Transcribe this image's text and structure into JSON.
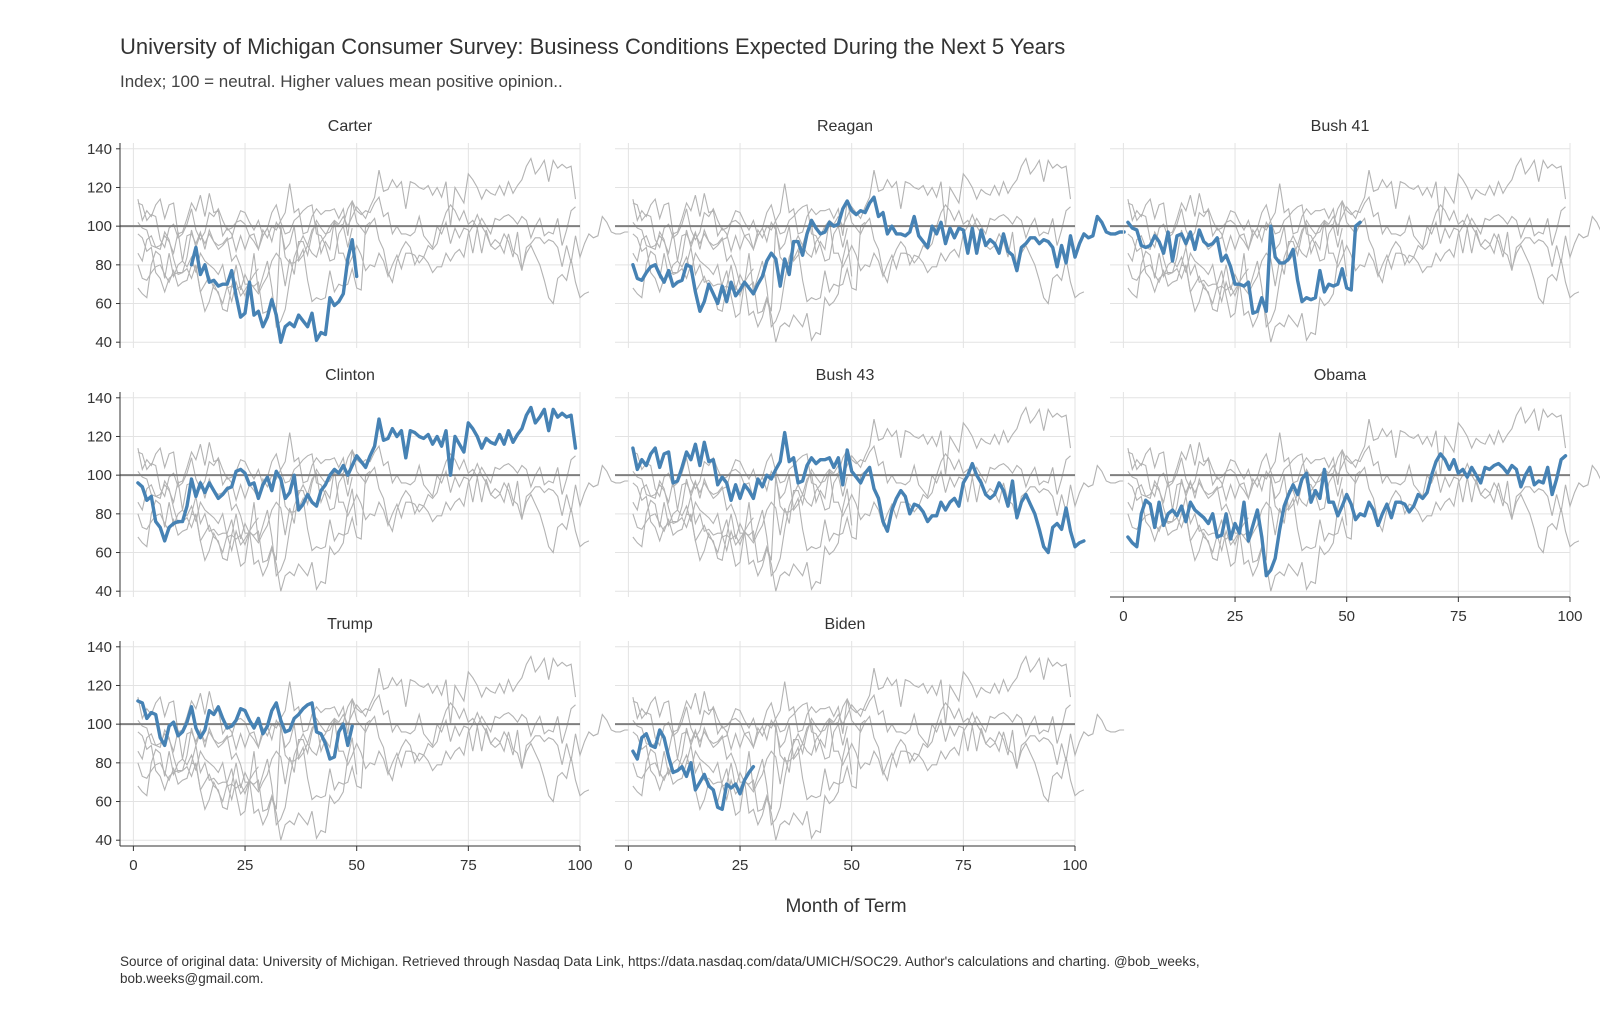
{
  "chart_data": {
    "type": "line",
    "title": "University of Michigan Consumer Survey: Business Conditions Expected During the Next 5 Years",
    "subtitle": "Index; 100 = neutral. Higher values mean positive opinion..",
    "xlabel": "Month of Term",
    "ylabel": "",
    "caption_lines": [
      "Source of original data: University of Michigan. Retrieved through Nasdaq Data Link, https://data.nasdaq.com/data/UMICH/SOC29. Author's calculations and charting. @bob_weeks,",
      "bob.weeks@gmail.com."
    ],
    "xlim": [
      -3,
      100
    ],
    "ylim": [
      37,
      143
    ],
    "xticks": [
      0,
      25,
      50,
      75,
      100
    ],
    "yticks": [
      40,
      60,
      80,
      100,
      120,
      140
    ],
    "reference_line": 100,
    "grid": true,
    "highlight_color": "#4682b4",
    "background_color": "#b3b3b3",
    "reference_color": "#7f7f7f",
    "panels": [
      {
        "name": "Carter",
        "x_start": 13,
        "values": [
          80,
          89,
          75,
          80,
          71,
          72,
          69,
          70,
          70,
          77,
          64,
          53,
          55,
          71,
          54,
          56,
          48,
          53,
          62,
          54,
          40,
          48,
          50,
          48,
          54,
          51,
          48,
          55,
          41,
          45,
          44,
          63,
          59,
          61,
          65,
          83,
          93,
          74
        ]
      },
      {
        "name": "Reagan",
        "x_start": 1,
        "values": [
          80,
          73,
          72,
          76,
          79,
          80,
          75,
          71,
          77,
          69,
          71,
          72,
          80,
          79,
          66,
          56,
          61,
          70,
          65,
          60,
          69,
          61,
          71,
          64,
          67,
          71,
          68,
          65,
          70,
          74,
          82,
          86,
          83,
          69,
          83,
          75,
          92,
          92,
          85,
          96,
          103,
          99,
          96,
          97,
          102,
          100,
          101,
          109,
          113,
          108,
          106,
          108,
          107,
          112,
          115,
          105,
          107,
          96,
          100,
          96,
          96,
          95,
          97,
          105,
          95,
          92,
          89,
          100,
          96,
          102,
          91,
          99,
          94,
          99,
          98,
          86,
          99,
          86,
          98,
          90,
          93,
          91,
          86,
          96,
          87,
          85,
          77,
          89,
          91,
          94,
          94,
          91,
          93,
          92,
          89,
          79,
          90,
          81,
          95,
          84,
          91,
          96,
          94,
          95,
          105,
          102,
          97,
          96,
          96,
          97,
          97
        ]
      },
      {
        "name": "Bush 41",
        "x_start": 1,
        "values": [
          102,
          99,
          98,
          90,
          89,
          90,
          95,
          92,
          86,
          97,
          82,
          95,
          96,
          91,
          97,
          88,
          98,
          92,
          90,
          91,
          94,
          82,
          85,
          79,
          70,
          70,
          69,
          71,
          55,
          56,
          63,
          56,
          100,
          84,
          81,
          81,
          83,
          88,
          72,
          61,
          63,
          62,
          63,
          77,
          66,
          70,
          69,
          70,
          78,
          68,
          67,
          100,
          102
        ]
      },
      {
        "name": "Clinton",
        "x_start": 1,
        "values": [
          96,
          94,
          87,
          89,
          76,
          73,
          66,
          73,
          75,
          76,
          76,
          84,
          98,
          89,
          96,
          91,
          96,
          92,
          88,
          90,
          93,
          94,
          102,
          103,
          101,
          95,
          96,
          88,
          95,
          99,
          92,
          102,
          98,
          88,
          91,
          100,
          82,
          85,
          90,
          86,
          84,
          92,
          95,
          100,
          103,
          101,
          105,
          100,
          105,
          110,
          107,
          104,
          110,
          115,
          129,
          118,
          119,
          124,
          120,
          123,
          109,
          123,
          122,
          120,
          119,
          121,
          116,
          120,
          115,
          123,
          100,
          120,
          116,
          112,
          127,
          124,
          120,
          114,
          119,
          117,
          116,
          121,
          116,
          123,
          117,
          121,
          124,
          131,
          135,
          127,
          130,
          134,
          123,
          134,
          130,
          132,
          130,
          131,
          114
        ]
      },
      {
        "name": "Bush 43",
        "x_start": 1,
        "values": [
          114,
          103,
          108,
          105,
          111,
          114,
          104,
          111,
          112,
          96,
          97,
          104,
          112,
          108,
          116,
          105,
          117,
          107,
          108,
          95,
          99,
          96,
          87,
          95,
          88,
          95,
          92,
          88,
          98,
          94,
          100,
          98,
          103,
          107,
          122,
          107,
          109,
          96,
          97,
          105,
          109,
          106,
          108,
          108,
          109,
          104,
          109,
          95,
          113,
          102,
          99,
          96,
          101,
          104,
          93,
          88,
          76,
          71,
          82,
          88,
          92,
          89,
          80,
          85,
          84,
          81,
          76,
          79,
          79,
          86,
          82,
          86,
          88,
          84,
          96,
          100,
          106,
          100,
          96,
          90,
          88,
          90,
          96,
          92,
          84,
          97,
          78,
          86,
          90,
          85,
          80,
          72,
          63,
          60,
          73,
          75,
          72,
          83,
          71,
          63,
          65,
          66
        ]
      },
      {
        "name": "Obama",
        "x_start": 1,
        "values": [
          68,
          65,
          63,
          80,
          87,
          85,
          73,
          86,
          74,
          80,
          82,
          79,
          84,
          76,
          86,
          82,
          80,
          78,
          75,
          80,
          68,
          69,
          80,
          67,
          75,
          70,
          86,
          66,
          74,
          82,
          68,
          48,
          51,
          57,
          72,
          84,
          90,
          95,
          90,
          98,
          101,
          86,
          92,
          88,
          103,
          86,
          86,
          79,
          84,
          90,
          85,
          77,
          80,
          79,
          86,
          82,
          74,
          80,
          85,
          78,
          86,
          86,
          85,
          81,
          84,
          90,
          88,
          91,
          100,
          107,
          111,
          108,
          103,
          108,
          101,
          103,
          99,
          104,
          100,
          96,
          104,
          103,
          105,
          106,
          104,
          101,
          105,
          103,
          94,
          100,
          104,
          95,
          97,
          96,
          104,
          90,
          98,
          108,
          110
        ]
      },
      {
        "name": "Trump",
        "x_start": 1,
        "values": [
          112,
          111,
          103,
          106,
          105,
          93,
          89,
          99,
          101,
          94,
          96,
          101,
          109,
          98,
          93,
          97,
          107,
          105,
          109,
          103,
          98,
          99,
          102,
          108,
          107,
          102,
          98,
          103,
          95,
          99,
          107,
          111,
          102,
          96,
          97,
          103,
          105,
          108,
          110,
          111,
          96,
          95,
          90,
          82,
          83,
          96,
          100,
          89,
          99
        ]
      },
      {
        "name": "Biden",
        "x_start": 1,
        "values": [
          86,
          82,
          93,
          95,
          89,
          88,
          97,
          93,
          83,
          75,
          76,
          78,
          73,
          80,
          66,
          70,
          74,
          68,
          66,
          57,
          56,
          69,
          67,
          69,
          64,
          71,
          75,
          78
        ]
      }
    ]
  }
}
